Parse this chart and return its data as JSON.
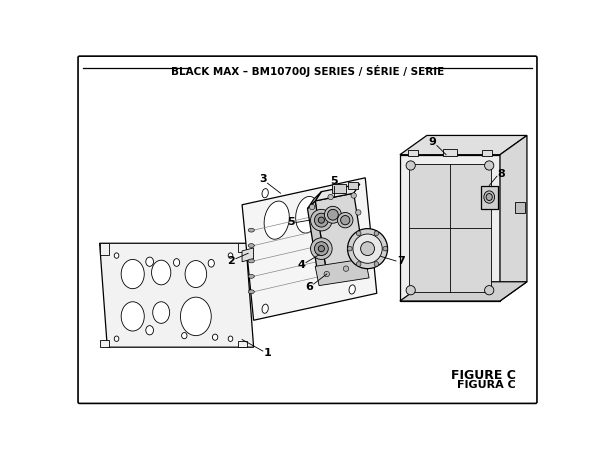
{
  "title": "BLACK MAX – BM10700J SERIES / SÉRIE / SERIE",
  "figure_label": "FIGURE C",
  "figura_label": "FIGURA C",
  "bg_color": "#ffffff",
  "border_color": "#000000",
  "line_color": "#000000",
  "title_fontsize": 7.5,
  "label_fontsize": 7,
  "figure_label_fontsize": 9
}
